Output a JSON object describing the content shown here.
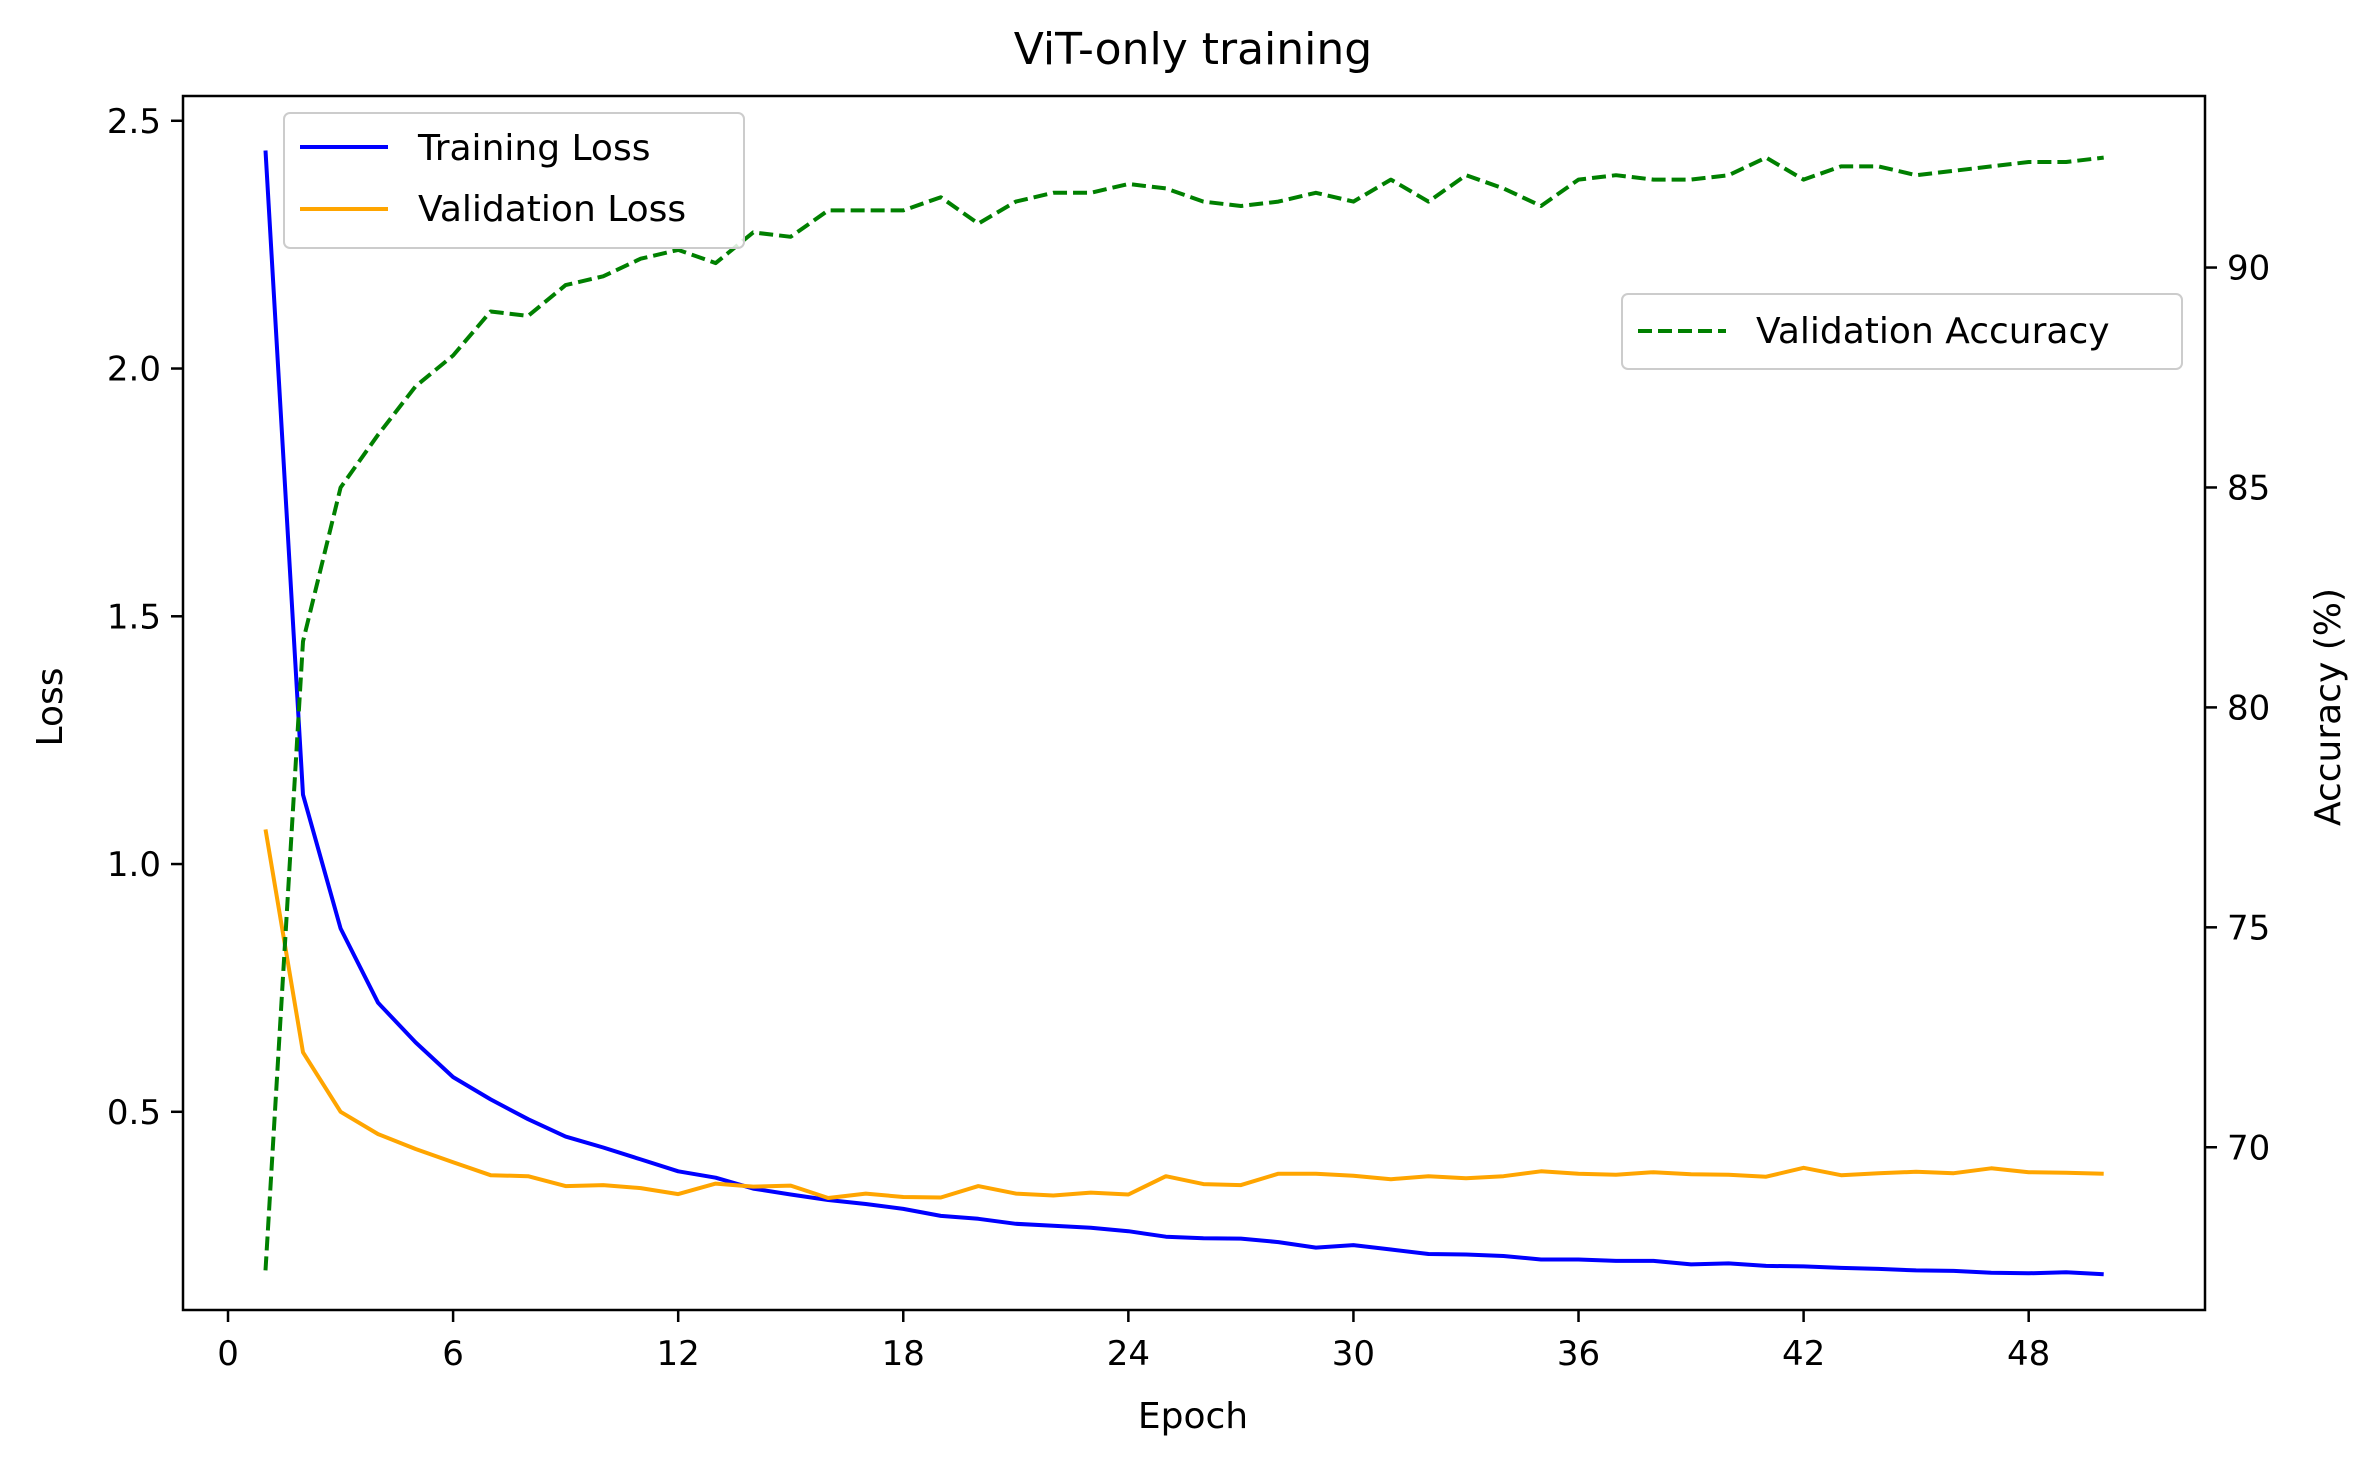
{
  "chart_data": {
    "type": "line",
    "title": "ViT-only training",
    "xlabel": "Epoch",
    "ylabel_left": "Loss",
    "ylabel_right": "Accuracy (%)",
    "xlim": [
      -1.2,
      52.7
    ],
    "ylim_left": [
      0.1,
      2.55
    ],
    "ylim_right": [
      66.3,
      93.9
    ],
    "x_ticks": [
      0,
      6,
      12,
      18,
      24,
      30,
      36,
      42,
      48
    ],
    "y_ticks_left": [
      0.5,
      1.0,
      1.5,
      2.0,
      2.5
    ],
    "y_tick_labels_left": [
      "0.5",
      "1.0",
      "1.5",
      "2.0",
      "2.5"
    ],
    "y_ticks_right": [
      70,
      75,
      80,
      85,
      90
    ],
    "grid": false,
    "x": [
      1,
      2,
      3,
      4,
      5,
      6,
      7,
      8,
      9,
      10,
      11,
      12,
      13,
      14,
      15,
      16,
      17,
      18,
      19,
      20,
      21,
      22,
      23,
      24,
      25,
      26,
      27,
      28,
      29,
      30,
      31,
      32,
      33,
      34,
      35,
      36,
      37,
      38,
      39,
      40,
      41,
      42,
      43,
      44,
      45,
      46,
      47,
      48,
      49,
      50
    ],
    "series": [
      {
        "name": "Training Loss",
        "axis": "left",
        "color": "#0000ff",
        "dash": "solid",
        "values": [
          2.44,
          1.14,
          0.87,
          0.72,
          0.64,
          0.57,
          0.525,
          0.485,
          0.45,
          0.428,
          0.404,
          0.38,
          0.367,
          0.345,
          0.333,
          0.322,
          0.314,
          0.304,
          0.29,
          0.284,
          0.274,
          0.27,
          0.266,
          0.259,
          0.248,
          0.245,
          0.244,
          0.237,
          0.226,
          0.231,
          0.222,
          0.213,
          0.212,
          0.209,
          0.202,
          0.202,
          0.199,
          0.199,
          0.192,
          0.194,
          0.189,
          0.188,
          0.185,
          0.183,
          0.18,
          0.179,
          0.175,
          0.174,
          0.176,
          0.172
        ]
      },
      {
        "name": "Validation Loss",
        "axis": "left",
        "color": "#ffa500",
        "dash": "solid",
        "values": [
          1.07,
          0.62,
          0.5,
          0.455,
          0.425,
          0.398,
          0.372,
          0.37,
          0.35,
          0.352,
          0.346,
          0.334,
          0.355,
          0.349,
          0.351,
          0.326,
          0.335,
          0.328,
          0.327,
          0.35,
          0.335,
          0.331,
          0.337,
          0.333,
          0.37,
          0.354,
          0.352,
          0.375,
          0.375,
          0.371,
          0.364,
          0.37,
          0.366,
          0.37,
          0.38,
          0.375,
          0.373,
          0.378,
          0.374,
          0.373,
          0.369,
          0.387,
          0.372,
          0.376,
          0.379,
          0.376,
          0.386,
          0.378,
          0.377,
          0.375
        ]
      },
      {
        "name": "Validation Accuracy",
        "axis": "right",
        "color": "#008000",
        "dash": "dashed",
        "values": [
          67.2,
          81.5,
          85.0,
          86.2,
          87.3,
          88.0,
          89.0,
          88.9,
          89.6,
          89.8,
          90.2,
          90.4,
          90.1,
          90.8,
          90.7,
          91.3,
          91.3,
          91.3,
          91.6,
          91.0,
          91.5,
          91.7,
          91.7,
          91.9,
          91.8,
          91.5,
          91.4,
          91.5,
          91.7,
          91.5,
          92.0,
          91.5,
          92.1,
          91.8,
          91.4,
          92.0,
          92.1,
          92.0,
          92.0,
          92.1,
          92.5,
          92.0,
          92.3,
          92.3,
          92.1,
          92.2,
          92.3,
          92.4,
          92.4,
          92.5
        ]
      }
    ],
    "legend_left": {
      "placement": "upper-left",
      "entries": [
        "Training Loss",
        "Validation Loss"
      ]
    },
    "legend_right": {
      "placement": "upper-right",
      "entries": [
        "Validation Accuracy"
      ]
    }
  }
}
